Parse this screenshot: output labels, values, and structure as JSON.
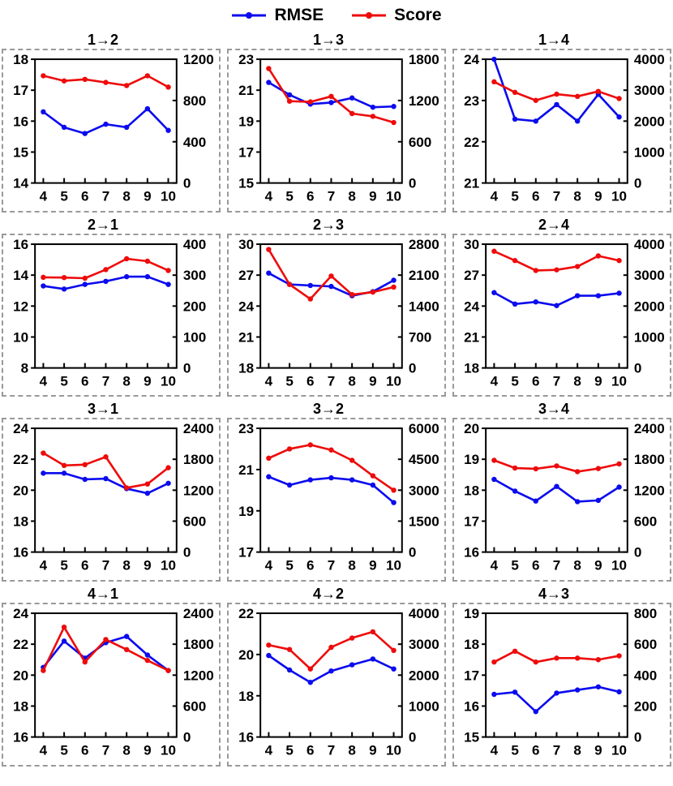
{
  "legend": {
    "items": [
      {
        "label": "RMSE",
        "color": "#0b0bee"
      },
      {
        "label": "Score",
        "color": "#ee0b0b"
      }
    ]
  },
  "chart_data": {
    "type": "line",
    "x": [
      4,
      5,
      6,
      7,
      8,
      9,
      10
    ],
    "x_axis_range": [
      3.6,
      10.4
    ],
    "grid": "off",
    "legend_position": "top-center",
    "series_meta": [
      {
        "name": "RMSE",
        "axis": "left",
        "color": "#0b0bee"
      },
      {
        "name": "Score",
        "axis": "right",
        "color": "#ee0b0b"
      }
    ],
    "charts": [
      {
        "title": "1→2",
        "left_ticks": [
          14,
          15,
          16,
          17,
          18
        ],
        "right_ticks": [
          0,
          400,
          800,
          1200
        ],
        "rmse": [
          16.3,
          15.8,
          15.6,
          15.9,
          15.8,
          16.4,
          15.7
        ],
        "score": [
          1040,
          990,
          1005,
          975,
          945,
          1040,
          930
        ]
      },
      {
        "title": "1→3",
        "left_ticks": [
          15,
          17,
          19,
          21,
          23
        ],
        "right_ticks": [
          0,
          600,
          1200,
          1800
        ],
        "rmse": [
          21.5,
          20.7,
          20.1,
          20.2,
          20.5,
          19.9,
          19.95
        ],
        "score": [
          1665,
          1190,
          1180,
          1260,
          1010,
          970,
          880
        ]
      },
      {
        "title": "1→4",
        "left_ticks": [
          21,
          22,
          23,
          24
        ],
        "right_ticks": [
          0,
          1000,
          2000,
          3000,
          4000
        ],
        "rmse": [
          24.0,
          22.55,
          22.5,
          22.9,
          22.5,
          23.15,
          22.6
        ],
        "score": [
          3270,
          2930,
          2670,
          2870,
          2800,
          2960,
          2730
        ]
      },
      {
        "title": "2→1",
        "left_ticks": [
          8,
          10,
          12,
          14,
          16
        ],
        "right_ticks": [
          0,
          100,
          200,
          300,
          400
        ],
        "rmse": [
          13.3,
          13.1,
          13.4,
          13.6,
          13.9,
          13.9,
          13.4
        ],
        "score": [
          293,
          292,
          290,
          318,
          353,
          345,
          315
        ]
      },
      {
        "title": "2→3",
        "left_ticks": [
          18,
          21,
          24,
          27,
          30
        ],
        "right_ticks": [
          0,
          700,
          1400,
          2100,
          2800
        ],
        "rmse": [
          27.2,
          26.1,
          26.0,
          25.9,
          25.0,
          25.4,
          26.5
        ],
        "score": [
          2680,
          1890,
          1560,
          2080,
          1660,
          1715,
          1830
        ]
      },
      {
        "title": "2→4",
        "left_ticks": [
          18,
          21,
          24,
          27,
          30
        ],
        "right_ticks": [
          0,
          1000,
          2000,
          3000,
          4000
        ],
        "rmse": [
          25.3,
          24.2,
          24.4,
          24.05,
          25.0,
          25.0,
          25.25
        ],
        "score": [
          3770,
          3470,
          3150,
          3170,
          3280,
          3620,
          3470
        ]
      },
      {
        "title": "3→1",
        "left_ticks": [
          16,
          18,
          20,
          22,
          24
        ],
        "right_ticks": [
          0,
          600,
          1200,
          1800,
          2400
        ],
        "rmse": [
          21.1,
          21.1,
          20.7,
          20.75,
          20.1,
          19.8,
          20.45
        ],
        "score": [
          1920,
          1680,
          1695,
          1845,
          1245,
          1320,
          1635
        ]
      },
      {
        "title": "3→2",
        "left_ticks": [
          17,
          19,
          21,
          23
        ],
        "right_ticks": [
          0,
          1500,
          3000,
          4500,
          6000
        ],
        "rmse": [
          20.65,
          20.25,
          20.5,
          20.6,
          20.5,
          20.25,
          19.4
        ],
        "score": [
          4550,
          5000,
          5200,
          4950,
          4450,
          3700,
          3000
        ]
      },
      {
        "title": "3→4",
        "left_ticks": [
          16,
          17,
          18,
          19,
          20
        ],
        "right_ticks": [
          0,
          600,
          1200,
          1800,
          2400
        ],
        "rmse": [
          18.35,
          17.97,
          17.65,
          18.12,
          17.63,
          17.67,
          18.1
        ],
        "score": [
          1780,
          1630,
          1615,
          1670,
          1560,
          1620,
          1710
        ]
      },
      {
        "title": "4→1",
        "left_ticks": [
          16,
          18,
          20,
          22,
          24
        ],
        "right_ticks": [
          0,
          600,
          1200,
          1800,
          2400
        ],
        "rmse": [
          20.5,
          22.2,
          21.1,
          22.1,
          22.5,
          21.3,
          20.3
        ],
        "score": [
          1290,
          2130,
          1455,
          1890,
          1695,
          1485,
          1290
        ]
      },
      {
        "title": "4→2",
        "left_ticks": [
          16,
          18,
          20,
          22
        ],
        "right_ticks": [
          0,
          1000,
          2000,
          3000,
          4000
        ],
        "rmse": [
          19.95,
          19.25,
          18.65,
          19.2,
          19.5,
          19.78,
          19.3
        ],
        "score": [
          2970,
          2830,
          2200,
          2900,
          3200,
          3400,
          2800
        ]
      },
      {
        "title": "4→3",
        "left_ticks": [
          15,
          16,
          17,
          18,
          19
        ],
        "right_ticks": [
          0,
          200,
          400,
          600,
          800
        ],
        "rmse": [
          16.38,
          16.45,
          15.82,
          16.42,
          16.52,
          16.62,
          16.46
        ],
        "score": [
          485,
          555,
          485,
          510,
          510,
          500,
          525
        ]
      }
    ]
  }
}
